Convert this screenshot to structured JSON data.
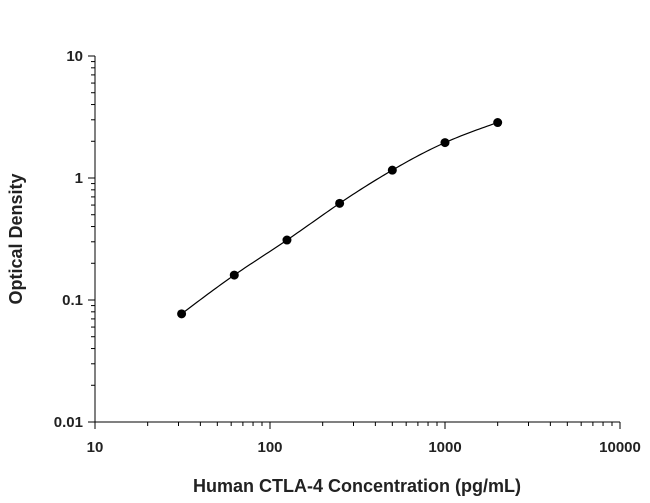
{
  "chart_data": {
    "type": "scatter",
    "xlabel": "Human CTLA-4 Concentration (pg/mL)",
    "ylabel": "Optical Density",
    "x_scale": "log",
    "y_scale": "log",
    "xlim": [
      10,
      10000
    ],
    "ylim": [
      0.01,
      10
    ],
    "x_ticks": [
      "10",
      "100",
      "1000",
      "10000"
    ],
    "y_ticks": [
      "10",
      "1",
      "0.1",
      "0.01"
    ],
    "grid": false,
    "fit_curve": true,
    "series": [
      {
        "color": "#000000",
        "points": [
          {
            "x": 31.25,
            "y": 0.077
          },
          {
            "x": 62.5,
            "y": 0.16
          },
          {
            "x": 125,
            "y": 0.31
          },
          {
            "x": 250,
            "y": 0.62
          },
          {
            "x": 500,
            "y": 1.16
          },
          {
            "x": 1000,
            "y": 1.95
          },
          {
            "x": 2000,
            "y": 2.85
          }
        ]
      }
    ]
  }
}
